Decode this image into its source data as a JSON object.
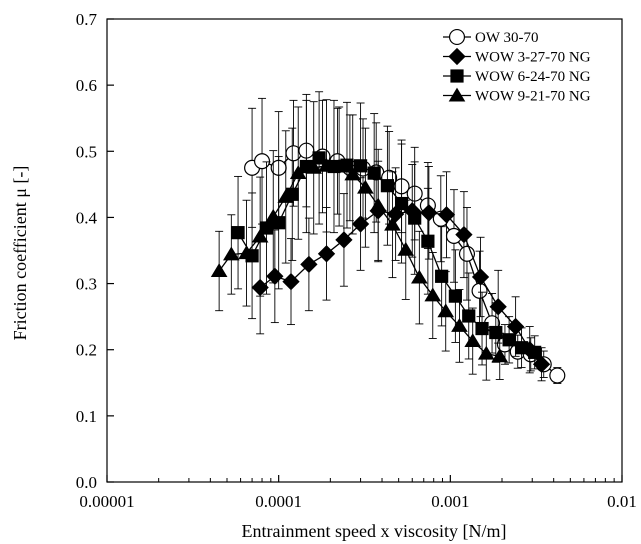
{
  "chart_data": {
    "type": "scatter",
    "title": "",
    "xlabel": "Entrainment speed x viscosity [N/m]",
    "ylabel": "Friction coefficient μ [-]",
    "x_scale": "log",
    "xlim": [
      1e-05,
      0.01
    ],
    "ylim": [
      0,
      0.7
    ],
    "x_ticks": [
      "0.00001",
      "0.0001",
      "0.001",
      "0.01"
    ],
    "y_ticks": [
      "0.0",
      "0.1",
      "0.2",
      "0.3",
      "0.4",
      "0.5",
      "0.6",
      "0.7"
    ],
    "grid": false,
    "legend_position": "top-right",
    "series": [
      {
        "name": "OW 30-70",
        "marker": "circle-open",
        "x": [
          7e-05,
          8e-05,
          0.0001,
          0.000122,
          0.000145,
          0.00018,
          0.00022,
          0.00026,
          0.00031,
          0.00037,
          0.00044,
          0.00052,
          0.00062,
          0.00074,
          0.00088,
          0.00105,
          0.00125,
          0.00148,
          0.00175,
          0.00208,
          0.00247,
          0.00294,
          0.0035,
          0.0042
        ],
        "y": [
          0.475,
          0.485,
          0.475,
          0.497,
          0.501,
          0.492,
          0.485,
          0.475,
          0.474,
          0.468,
          0.46,
          0.447,
          0.436,
          0.418,
          0.398,
          0.372,
          0.345,
          0.289,
          0.24,
          0.208,
          0.197,
          0.193,
          0.178,
          0.161
        ],
        "y_err": [
          0.09,
          0.095,
          0.085,
          0.08,
          0.085,
          0.085,
          0.08,
          0.08,
          0.075,
          0.075,
          0.07,
          0.07,
          0.07,
          0.065,
          0.065,
          0.07,
          0.07,
          0.06,
          0.045,
          0.03,
          0.025,
          0.025,
          0.02,
          0.012
        ]
      },
      {
        "name": "WOW 3-27-70 NG",
        "marker": "diamond-filled",
        "x": [
          7.8e-05,
          9.5e-05,
          0.000118,
          0.00015,
          0.00019,
          0.00024,
          0.0003,
          0.00038,
          0.00048,
          0.0006,
          0.00075,
          0.00095,
          0.0012,
          0.0015,
          0.0019,
          0.0024,
          0.0029,
          0.0034
        ],
        "y": [
          0.294,
          0.311,
          0.303,
          0.329,
          0.345,
          0.366,
          0.39,
          0.41,
          0.405,
          0.41,
          0.407,
          0.404,
          0.374,
          0.31,
          0.265,
          0.235,
          0.2,
          0.178
        ],
        "y_err": [
          0.07,
          0.07,
          0.065,
          0.07,
          0.07,
          0.07,
          0.07,
          0.075,
          0.07,
          0.07,
          0.07,
          0.065,
          0.065,
          0.06,
          0.055,
          0.045,
          0.035,
          0.025
        ]
      },
      {
        "name": "WOW 6-24-70 NG",
        "marker": "square-filled",
        "x": [
          5.8e-05,
          7e-05,
          8.5e-05,
          0.0001,
          0.00012,
          0.000145,
          0.000172,
          0.00021,
          0.00025,
          0.0003,
          0.00036,
          0.00043,
          0.00052,
          0.00062,
          0.00074,
          0.00089,
          0.00107,
          0.00128,
          0.00153,
          0.00184,
          0.0022,
          0.0026,
          0.0031
        ],
        "y": [
          0.377,
          0.342,
          0.384,
          0.392,
          0.435,
          0.477,
          0.49,
          0.477,
          0.479,
          0.478,
          0.467,
          0.448,
          0.421,
          0.399,
          0.364,
          0.311,
          0.281,
          0.251,
          0.232,
          0.226,
          0.215,
          0.203,
          0.196
        ],
        "y_err": [
          0.085,
          0.095,
          0.1,
          0.1,
          0.1,
          0.1,
          0.1,
          0.1,
          0.095,
          0.095,
          0.09,
          0.09,
          0.09,
          0.085,
          0.08,
          0.075,
          0.07,
          0.065,
          0.055,
          0.045,
          0.035,
          0.03,
          0.025
        ]
      },
      {
        "name": "WOW 9-21-70 NG",
        "marker": "triangle-filled",
        "x": [
          4.5e-05,
          5.3e-05,
          6.5e-05,
          7.8e-05,
          9.3e-05,
          0.00011,
          0.00013,
          0.00016,
          0.00019,
          0.000225,
          0.00027,
          0.00032,
          0.00038,
          0.00046,
          0.00055,
          0.00066,
          0.00079,
          0.00094,
          0.00113,
          0.00135,
          0.00162,
          0.00194
        ],
        "y": [
          0.319,
          0.344,
          0.346,
          0.371,
          0.401,
          0.431,
          0.467,
          0.475,
          0.478,
          0.477,
          0.465,
          0.445,
          0.418,
          0.389,
          0.351,
          0.309,
          0.282,
          0.258,
          0.236,
          0.213,
          0.194,
          0.19
        ],
        "y_err": [
          0.06,
          0.06,
          0.08,
          0.09,
          0.1,
          0.1,
          0.1,
          0.1,
          0.1,
          0.09,
          0.09,
          0.09,
          0.085,
          0.08,
          0.075,
          0.07,
          0.065,
          0.06,
          0.055,
          0.05,
          0.04,
          0.035
        ]
      }
    ]
  }
}
